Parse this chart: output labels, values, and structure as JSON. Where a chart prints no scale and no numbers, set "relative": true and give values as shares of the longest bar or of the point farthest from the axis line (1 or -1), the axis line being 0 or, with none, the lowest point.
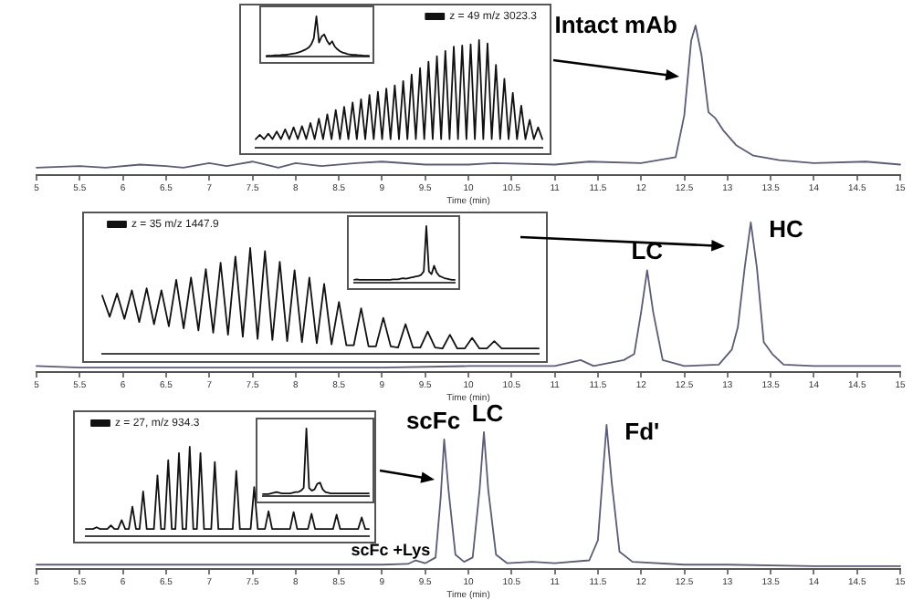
{
  "chart_data": [
    {
      "type": "line",
      "relative": true,
      "xlabel": "Time (min)",
      "tick_labels": "x",
      "marker": "none",
      "line_style": "solid",
      "xlim": [
        5,
        15
      ],
      "xticks": [
        5,
        5.5,
        6,
        6.5,
        7,
        7.5,
        8,
        8.5,
        9,
        9.5,
        10,
        10.5,
        11,
        11.5,
        12,
        12.5,
        13,
        13.5,
        14,
        14.5,
        15
      ],
      "annotations": [
        {
          "text": "Intact mAb",
          "x": 12.63,
          "y": 1
        }
      ],
      "series": [
        {
          "color": "#5b5b7a",
          "x": [
            5,
            5.5,
            5.8,
            6.2,
            6.5,
            6.7,
            7,
            7.2,
            7.5,
            7.8,
            8,
            8.3,
            8.7,
            9,
            9.5,
            10,
            10.3,
            11,
            11.4,
            12,
            12.4,
            12.5,
            12.58,
            12.63,
            12.7,
            12.78,
            12.86,
            12.95,
            13.1,
            13.3,
            13.6,
            14,
            14.6,
            15
          ],
          "values": [
            0.05,
            0.06,
            0.05,
            0.07,
            0.06,
            0.05,
            0.08,
            0.06,
            0.09,
            0.05,
            0.08,
            0.06,
            0.08,
            0.09,
            0.07,
            0.07,
            0.08,
            0.07,
            0.09,
            0.08,
            0.12,
            0.4,
            0.9,
            1,
            0.8,
            0.42,
            0.38,
            0.3,
            0.2,
            0.13,
            0.1,
            0.08,
            0.09,
            0.07
          ]
        }
      ]
    },
    {
      "type": "line",
      "relative": true,
      "tick_labels": false,
      "marker": "none",
      "line_style": "solid",
      "legend": "top right",
      "categories": [
        null,
        null,
        null,
        null,
        null,
        null,
        null,
        null,
        null,
        null,
        null,
        null,
        null,
        null,
        null,
        null,
        null,
        null,
        null,
        null,
        null,
        null,
        null,
        null,
        null,
        null,
        null,
        null,
        null,
        null,
        null,
        null,
        null,
        null,
        null,
        null,
        null,
        null,
        null,
        null,
        null,
        null,
        null,
        null,
        null,
        null,
        null,
        null,
        null,
        null,
        null,
        null,
        null,
        null,
        null,
        null,
        null,
        null,
        null,
        null,
        null,
        null,
        null,
        null,
        null,
        null,
        null,
        null,
        null
      ],
      "series": [
        {
          "name": "z = 49 m/z 3023.3",
          "color": "#111111",
          "values": [
            0.08,
            0.12,
            0.08,
            0.13,
            0.08,
            0.15,
            0.08,
            0.17,
            0.08,
            0.19,
            0.08,
            0.2,
            0.08,
            0.23,
            0.08,
            0.27,
            0.08,
            0.31,
            0.08,
            0.35,
            0.08,
            0.38,
            0.08,
            0.42,
            0.08,
            0.45,
            0.08,
            0.49,
            0.08,
            0.52,
            0.08,
            0.55,
            0.08,
            0.58,
            0.08,
            0.62,
            0.08,
            0.68,
            0.08,
            0.74,
            0.08,
            0.8,
            0.08,
            0.85,
            0.08,
            0.9,
            0.08,
            0.94,
            0.08,
            0.95,
            0.08,
            0.96,
            0.08,
            1,
            0.08,
            0.97,
            0.08,
            0.77,
            0.08,
            0.64,
            0.08,
            0.51,
            0.08,
            0.39,
            0.08,
            0.26,
            0.08,
            0.19,
            0.08
          ]
        }
      ]
    },
    {
      "type": "line",
      "relative": true,
      "tick_labels": false,
      "marker": "none",
      "line_style": "solid",
      "categories": [
        null,
        null,
        null,
        null,
        null,
        null,
        null,
        null,
        null,
        null,
        null,
        null,
        null,
        null,
        null,
        null,
        null,
        null,
        null,
        null,
        null,
        null,
        null,
        null,
        null,
        null,
        null,
        null,
        null,
        null,
        null,
        null,
        null,
        null,
        null,
        null,
        null,
        null,
        null,
        null
      ],
      "series": [
        {
          "color": "#111111",
          "values": [
            0.02,
            0.02,
            0.02,
            0.03,
            0.03,
            0.03,
            0.04,
            0.04,
            0.05,
            0.06,
            0.07,
            0.08,
            0.1,
            0.12,
            0.15,
            0.18,
            0.22,
            0.3,
            0.45,
            1,
            0.35,
            0.5,
            0.55,
            0.4,
            0.3,
            0.38,
            0.25,
            0.18,
            0.13,
            0.1,
            0.08,
            0.06,
            0.05,
            0.04,
            0.04,
            0.03,
            0.03,
            0.02,
            0.02,
            0.02
          ]
        }
      ]
    },
    {
      "type": "line",
      "relative": true,
      "xlabel": "Time (min)",
      "tick_labels": "x",
      "marker": "none",
      "line_style": "solid",
      "xlim": [
        5,
        15
      ],
      "xticks": [
        5,
        5.5,
        6,
        6.5,
        7,
        7.5,
        8,
        8.5,
        9,
        9.5,
        10,
        10.5,
        11,
        11.5,
        12,
        12.5,
        13,
        13.5,
        14,
        14.5,
        15
      ],
      "annotations": [
        {
          "text": "LC",
          "x": 12.07,
          "y": 0.68
        },
        {
          "text": "HC",
          "x": 13.27,
          "y": 1
        }
      ],
      "series": [
        {
          "color": "#5b5b7a",
          "x": [
            5,
            5.5,
            6,
            7,
            8,
            9,
            10,
            10.5,
            11,
            11.3,
            11.45,
            11.8,
            11.92,
            12,
            12.07,
            12.14,
            12.25,
            12.5,
            12.9,
            13.05,
            13.12,
            13.2,
            13.27,
            13.34,
            13.42,
            13.52,
            13.65,
            14,
            15
          ],
          "values": [
            0.04,
            0.03,
            0.03,
            0.03,
            0.03,
            0.03,
            0.04,
            0.04,
            0.04,
            0.08,
            0.04,
            0.08,
            0.12,
            0.4,
            0.68,
            0.4,
            0.08,
            0.04,
            0.05,
            0.15,
            0.3,
            0.7,
            1,
            0.7,
            0.2,
            0.12,
            0.05,
            0.04,
            0.04
          ]
        }
      ]
    },
    {
      "type": "line",
      "relative": true,
      "tick_labels": false,
      "marker": "none",
      "line_style": "solid",
      "legend": "top left",
      "categories": [
        null,
        null,
        null,
        null,
        null,
        null,
        null,
        null,
        null,
        null,
        null,
        null,
        null,
        null,
        null,
        null,
        null,
        null,
        null,
        null,
        null,
        null,
        null,
        null,
        null,
        null,
        null,
        null,
        null,
        null,
        null,
        null,
        null,
        null,
        null,
        null,
        null,
        null,
        null,
        null,
        null,
        null,
        null,
        null,
        null,
        null,
        null,
        null,
        null,
        null,
        null,
        null,
        null,
        null,
        null,
        null,
        null,
        null,
        null,
        null
      ],
      "series": [
        {
          "name": "z = 35 m/z 1447.9",
          "color": "#111111",
          "values": [
            0.55,
            0.35,
            0.57,
            0.33,
            0.6,
            0.3,
            0.62,
            0.28,
            0.6,
            0.26,
            0.7,
            0.24,
            0.72,
            0.22,
            0.8,
            0.2,
            0.86,
            0.18,
            0.92,
            0.16,
            1,
            0.14,
            0.97,
            0.13,
            0.87,
            0.12,
            0.79,
            0.11,
            0.72,
            0.1,
            0.66,
            0.09,
            0.49,
            0.08,
            0.08,
            0.43,
            0.07,
            0.07,
            0.34,
            0.07,
            0.06,
            0.28,
            0.06,
            0.06,
            0.21,
            0.06,
            0.05,
            0.18,
            0.05,
            0.05,
            0.15,
            0.05,
            0.05,
            0.12,
            0.05,
            0.05,
            0.05,
            0.05,
            0.05,
            0.05
          ]
        }
      ]
    },
    {
      "type": "line",
      "relative": true,
      "tick_labels": false,
      "marker": "none",
      "line_style": "solid",
      "categories": [
        null,
        null,
        null,
        null,
        null,
        null,
        null,
        null,
        null,
        null,
        null,
        null,
        null,
        null,
        null,
        null,
        null,
        null,
        null,
        null,
        null,
        null,
        null,
        null,
        null,
        null,
        null,
        null,
        null,
        null,
        null,
        null,
        null,
        null,
        null,
        null,
        null,
        null,
        null,
        null
      ],
      "series": [
        {
          "color": "#111111",
          "values": [
            0.05,
            0.06,
            0.05,
            0.05,
            0.05,
            0.05,
            0.05,
            0.05,
            0.05,
            0.05,
            0.05,
            0.05,
            0.05,
            0.05,
            0.05,
            0.06,
            0.06,
            0.06,
            0.07,
            0.08,
            0.07,
            0.08,
            0.09,
            0.1,
            0.11,
            0.12,
            0.14,
            0.2,
            1,
            0.2,
            0.15,
            0.3,
            0.18,
            0.12,
            0.1,
            0.08,
            0.07,
            0.06,
            0.05,
            0.05
          ]
        }
      ]
    },
    {
      "type": "line",
      "relative": true,
      "xlabel": "Time (min)",
      "tick_labels": "x",
      "marker": "none",
      "line_style": "solid",
      "xlim": [
        5,
        15
      ],
      "xticks": [
        5,
        5.5,
        6,
        6.5,
        7,
        7.5,
        8,
        8.5,
        9,
        9.5,
        10,
        10.5,
        11,
        11.5,
        12,
        12.5,
        13,
        13.5,
        14,
        14.5,
        15
      ],
      "annotations": [
        {
          "text": "scFc",
          "x": 9.72,
          "y": 0.9
        },
        {
          "text": "LC",
          "x": 10.18,
          "y": 0.95
        },
        {
          "text": "Fd'",
          "x": 11.6,
          "y": 1
        },
        {
          "text": "scFc +Lys",
          "x": 9.39,
          "y": 0.06
        }
      ],
      "series": [
        {
          "color": "#5b5b7a",
          "x": [
            5,
            6,
            7,
            8,
            9,
            9.3,
            9.39,
            9.5,
            9.62,
            9.68,
            9.72,
            9.77,
            9.85,
            9.95,
            10.05,
            10.13,
            10.18,
            10.23,
            10.32,
            10.45,
            10.74,
            11,
            11.4,
            11.5,
            11.55,
            11.6,
            11.66,
            11.75,
            11.9,
            12.5,
            13,
            14,
            15
          ],
          "values": [
            0.03,
            0.03,
            0.03,
            0.03,
            0.03,
            0.035,
            0.06,
            0.04,
            0.08,
            0.5,
            0.9,
            0.55,
            0.1,
            0.05,
            0.08,
            0.55,
            0.95,
            0.55,
            0.1,
            0.04,
            0.05,
            0.04,
            0.06,
            0.2,
            0.6,
            1,
            0.6,
            0.12,
            0.05,
            0.03,
            0.03,
            0.02,
            0.02
          ]
        }
      ]
    },
    {
      "type": "line",
      "relative": true,
      "tick_labels": false,
      "marker": "none",
      "line_style": "solid",
      "legend": "top left",
      "categories": [
        null,
        null,
        null,
        null,
        null,
        null,
        null,
        null,
        null,
        null,
        null,
        null,
        null,
        null,
        null,
        null,
        null,
        null,
        null,
        null,
        null,
        null,
        null,
        null,
        null,
        null,
        null,
        null,
        null,
        null,
        null,
        null,
        null,
        null,
        null,
        null,
        null,
        null,
        null,
        null,
        null,
        null,
        null,
        null,
        null,
        null,
        null,
        null,
        null,
        null,
        null,
        null,
        null,
        null,
        null,
        null,
        null,
        null,
        null,
        null,
        null,
        null,
        null,
        null,
        null,
        null,
        null,
        null,
        null,
        null,
        null,
        null,
        null,
        null,
        null,
        null,
        null,
        null,
        null,
        null
      ],
      "series": [
        {
          "name": "z = 27, m/z 934.3",
          "color": "#111111",
          "values": [
            0.08,
            0.08,
            0.08,
            0.1,
            0.08,
            0.08,
            0.08,
            0.12,
            0.08,
            0.08,
            0.18,
            0.08,
            0.08,
            0.33,
            0.08,
            0.08,
            0.5,
            0.08,
            0.08,
            0.08,
            0.68,
            0.08,
            0.08,
            0.85,
            0.08,
            0.08,
            0.93,
            0.08,
            0.08,
            1,
            0.08,
            0.08,
            0.93,
            0.08,
            0.08,
            0.08,
            0.83,
            0.08,
            0.08,
            0.08,
            0.08,
            0.08,
            0.73,
            0.08,
            0.08,
            0.08,
            0.08,
            0.55,
            0.08,
            0.08,
            0.08,
            0.28,
            0.08,
            0.08,
            0.08,
            0.08,
            0.08,
            0.08,
            0.27,
            0.08,
            0.08,
            0.08,
            0.08,
            0.25,
            0.08,
            0.08,
            0.08,
            0.08,
            0.08,
            0.08,
            0.24,
            0.08,
            0.08,
            0.08,
            0.08,
            0.08,
            0.08,
            0.21,
            0.08,
            0.08
          ]
        }
      ]
    },
    {
      "type": "line",
      "relative": true,
      "tick_labels": false,
      "marker": "none",
      "line_style": "solid",
      "categories": [
        null,
        null,
        null,
        null,
        null,
        null,
        null,
        null,
        null,
        null,
        null,
        null,
        null,
        null,
        null,
        null,
        null,
        null,
        null,
        null,
        null,
        null,
        null,
        null,
        null,
        null,
        null,
        null,
        null,
        null,
        null,
        null,
        null,
        null,
        null,
        null,
        null,
        null,
        null,
        null
      ],
      "series": [
        {
          "color": "#111111",
          "values": [
            0.03,
            0.03,
            0.03,
            0.04,
            0.05,
            0.06,
            0.05,
            0.04,
            0.04,
            0.04,
            0.04,
            0.05,
            0.06,
            0.06,
            0.08,
            0.12,
            1,
            0.12,
            0.08,
            0.1,
            0.18,
            0.2,
            0.1,
            0.06,
            0.05,
            0.04,
            0.04,
            0.04,
            0.04,
            0.04,
            0.04,
            0.04,
            0.04,
            0.04,
            0.04,
            0.04,
            0.04,
            0.04,
            0.04,
            0.04
          ]
        }
      ]
    }
  ]
}
